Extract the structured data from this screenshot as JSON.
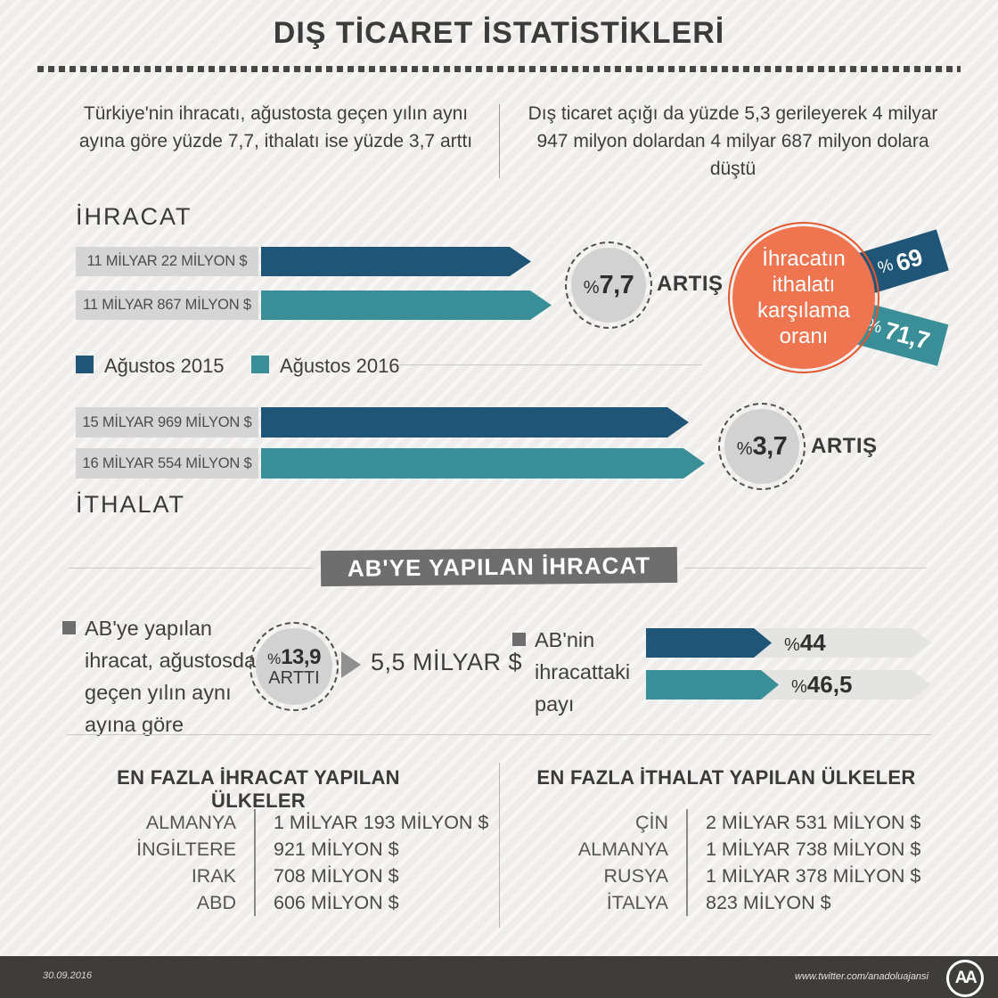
{
  "header": {
    "title": "DIŞ TİCARET İSTATİSTİKLERİ"
  },
  "intro": {
    "left": "Türkiye'nin ihracatı, ağustosta geçen yılın aynı ayına göre yüzde 7,7, ithalatı ise yüzde 3,7 arttı",
    "right": "Dış ticaret açığı da yüzde 5,3 gerileyerek 4 milyar 947 milyon dolardan 4 milyar 687 milyon dolara düştü"
  },
  "colors": {
    "dark_blue": "#1f5678",
    "teal": "#398e97",
    "orange": "#ee7550",
    "orange_ring": "#e4572e",
    "banner_gray": "#6f6e6e",
    "box_gray": "#d5d5d5",
    "circle_gray": "#d2d2d2",
    "track_gray": "#e4e4e3",
    "footer_bg": "#3e3d3b"
  },
  "export_section": {
    "label": "İHRACAT",
    "bars": [
      {
        "value_label": "11 MİLYAR 22 MİLYON $"
      },
      {
        "value_label": "11 MİLYAR 867 MİLYON $"
      }
    ],
    "change_sign": "%",
    "change_value": "7,7",
    "change_word": "ARTIŞ"
  },
  "legend": {
    "items": [
      {
        "label": "Ağustos 2015",
        "color": "#1f5678"
      },
      {
        "label": "Ağustos 2016",
        "color": "#398e97"
      }
    ]
  },
  "coverage": {
    "circle_text": "İhracatın ithalatı karşılama oranı",
    "ribbons": [
      {
        "sign": "%",
        "value": "69",
        "color": "#1f5678"
      },
      {
        "sign": "%",
        "value": "71,7",
        "color": "#398e97"
      }
    ]
  },
  "import_section": {
    "label": "İTHALAT",
    "bars": [
      {
        "value_label": "15 MİLYAR 969 MİLYON $"
      },
      {
        "value_label": "16 MİLYAR 554 MİLYON $"
      }
    ],
    "change_sign": "%",
    "change_value": "3,7",
    "change_word": "ARTIŞ"
  },
  "eu_section": {
    "banner": "AB'YE YAPILAN İHRACAT",
    "left_note": "AB'ye yapılan ihracat, ağustosda geçen yılın aynı ayına göre",
    "circle_sign": "%",
    "circle_value": "13,9",
    "circle_word": "ARTTI",
    "amount": "5,5 MİLYAR $",
    "right_note": "AB'nin ihracattaki payı",
    "share_bars": [
      {
        "sign": "%",
        "label": "44"
      },
      {
        "sign": "%",
        "label": "46,5"
      }
    ]
  },
  "tables": {
    "export": {
      "title": "EN FAZLA İHRACAT YAPILAN ÜLKELER",
      "rows": [
        [
          "ALMANYA",
          "1 MİLYAR 193 MİLYON $"
        ],
        [
          "İNGİLTERE",
          "921 MİLYON $"
        ],
        [
          "IRAK",
          "708 MİLYON $"
        ],
        [
          "ABD",
          "606 MİLYON $"
        ]
      ]
    },
    "import": {
      "title": "EN FAZLA İTHALAT YAPILAN ÜLKELER",
      "rows": [
        [
          "ÇİN",
          "2 MİLYAR 531 MİLYON $"
        ],
        [
          "ALMANYA",
          "1 MİLYAR 738 MİLYON $"
        ],
        [
          "RUSYA",
          "1 MİLYAR 378 MİLYON $"
        ],
        [
          "İTALYA",
          "823 MİLYON $"
        ]
      ]
    }
  },
  "footer": {
    "date": "30.09.2016",
    "url": "www.twitter.com/anadoluajansi",
    "logo": "AA"
  },
  "chart_data": [
    {
      "type": "bar",
      "title": "İHRACAT",
      "categories": [
        "Ağustos 2015",
        "Ağustos 2016"
      ],
      "values": [
        11022,
        11867
      ],
      "unit": "milyon $",
      "value_labels": [
        "11 MİLYAR 22 MİLYON $",
        "11 MİLYAR 867 MİLYON $"
      ],
      "annotation": "%7,7 ARTIŞ",
      "legend_position": "below",
      "orientation": "horizontal"
    },
    {
      "type": "bar",
      "title": "İTHALAT",
      "categories": [
        "Ağustos 2015",
        "Ağustos 2016"
      ],
      "values": [
        15969,
        16554
      ],
      "unit": "milyon $",
      "value_labels": [
        "15 MİLYAR 969 MİLYON $",
        "16 MİLYAR 554 MİLYON $"
      ],
      "annotation": "%3,7 ARTIŞ",
      "orientation": "horizontal"
    },
    {
      "type": "bar",
      "title": "İhracatın ithalatı karşılama oranı",
      "categories": [
        "Ağustos 2015",
        "Ağustos 2016"
      ],
      "values": [
        69,
        71.7
      ],
      "unit": "%",
      "value_labels": [
        "% 69",
        "% 71,7"
      ]
    },
    {
      "type": "bar",
      "title": "AB'nin ihracattaki payı",
      "categories": [
        "Ağustos 2015",
        "Ağustos 2016"
      ],
      "values": [
        44,
        46.5
      ],
      "unit": "%",
      "value_labels": [
        "%44",
        "%46,5"
      ],
      "xlim": [
        0,
        100
      ],
      "orientation": "horizontal"
    },
    {
      "type": "table",
      "title": "EN FAZLA İHRACAT YAPILAN ÜLKELER",
      "rows": [
        [
          "ALMANYA",
          "1 MİLYAR 193 MİLYON $"
        ],
        [
          "İNGİLTERE",
          "921 MİLYON $"
        ],
        [
          "IRAK",
          "708 MİLYON $"
        ],
        [
          "ABD",
          "606 MİLYON $"
        ]
      ]
    },
    {
      "type": "table",
      "title": "EN FAZLA İTHALAT YAPILAN ÜLKELER",
      "rows": [
        [
          "ÇİN",
          "2 MİLYAR 531 MİLYON $"
        ],
        [
          "ALMANYA",
          "1 MİLYAR 738 MİLYON $"
        ],
        [
          "RUSYA",
          "1 MİLYAR 378 MİLYON $"
        ],
        [
          "İTALYA",
          "823 MİLYON $"
        ]
      ]
    }
  ]
}
